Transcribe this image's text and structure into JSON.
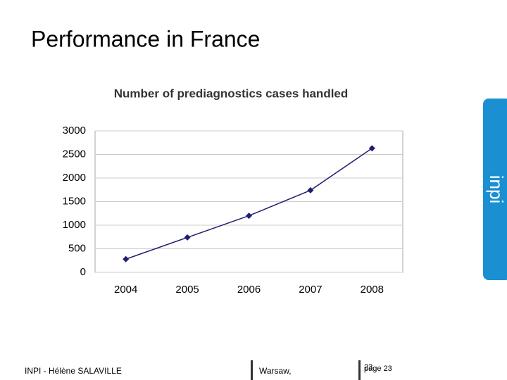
{
  "slide": {
    "title": "Performance in France",
    "logo": "inpi",
    "footer_author": "INPI - Hélène SALAVILLE",
    "footer_place": "Warsaw,",
    "footer_number": "23",
    "footer_page": "page 23"
  },
  "chart_data": {
    "type": "line",
    "title": "Number of  prediagnostics cases handled",
    "categories": [
      "2004",
      "2005",
      "2006",
      "2007",
      "2008"
    ],
    "series": [
      {
        "name": "Prediagnostics",
        "color": "#1f1f6e",
        "values": [
          280,
          740,
          1200,
          1740,
          2630
        ]
      }
    ],
    "ylim": [
      0,
      3000
    ],
    "yticks": [
      0,
      500,
      1000,
      1500,
      2000,
      2500,
      3000
    ],
    "grid": true
  }
}
